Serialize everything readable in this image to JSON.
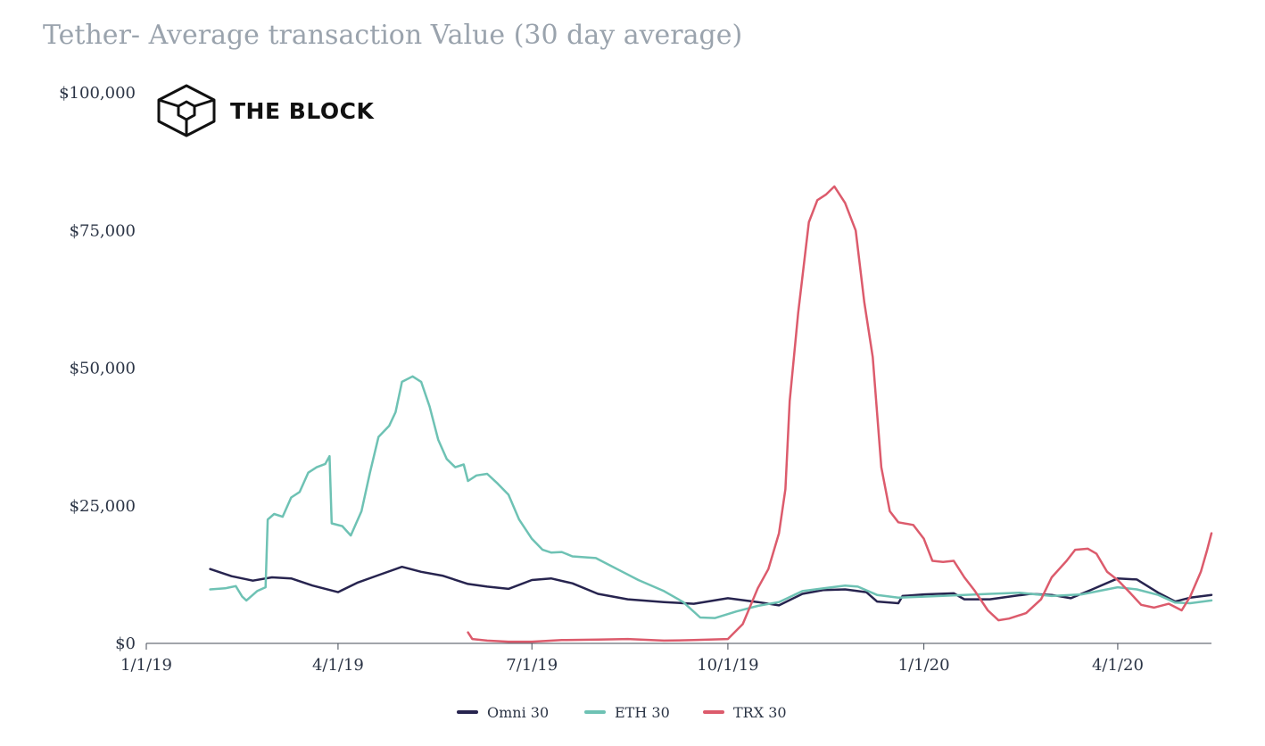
{
  "chart_data": {
    "type": "line",
    "title": "Tether- Average transaction Value (30 day average)",
    "watermark": "THE BLOCK",
    "xlabel": "",
    "ylabel": "",
    "x_range": [
      "2019-01-01",
      "2020-05-15"
    ],
    "x_ticks": [
      "1/1/19",
      "4/1/19",
      "7/1/19",
      "10/1/19",
      "1/1/20",
      "4/1/20"
    ],
    "y_range": [
      0,
      100000
    ],
    "y_ticks": [
      "$0",
      "$25,000",
      "$50,000",
      "$75,000",
      "$100,000"
    ],
    "grid": false,
    "legend_position": "bottom-center",
    "series": [
      {
        "name": "Omni 30",
        "color": "#27244f",
        "points": [
          [
            "2019-01-31",
            13500
          ],
          [
            "2019-02-10",
            12200
          ],
          [
            "2019-02-20",
            11400
          ],
          [
            "2019-03-01",
            12000
          ],
          [
            "2019-03-10",
            11800
          ],
          [
            "2019-03-20",
            10500
          ],
          [
            "2019-04-01",
            9300
          ],
          [
            "2019-04-10",
            11000
          ],
          [
            "2019-04-20",
            12400
          ],
          [
            "2019-05-01",
            13900
          ],
          [
            "2019-05-10",
            13000
          ],
          [
            "2019-05-20",
            12300
          ],
          [
            "2019-06-01",
            10800
          ],
          [
            "2019-06-10",
            10300
          ],
          [
            "2019-06-20",
            9900
          ],
          [
            "2019-07-01",
            11500
          ],
          [
            "2019-07-10",
            11800
          ],
          [
            "2019-07-20",
            10900
          ],
          [
            "2019-08-01",
            9000
          ],
          [
            "2019-08-15",
            8000
          ],
          [
            "2019-09-01",
            7500
          ],
          [
            "2019-09-15",
            7200
          ],
          [
            "2019-10-01",
            8200
          ],
          [
            "2019-10-15",
            7500
          ],
          [
            "2019-10-25",
            6900
          ],
          [
            "2019-11-05",
            9000
          ],
          [
            "2019-11-15",
            9700
          ],
          [
            "2019-11-25",
            9800
          ],
          [
            "2019-12-05",
            9300
          ],
          [
            "2019-12-10",
            7600
          ],
          [
            "2019-12-20",
            7300
          ],
          [
            "2019-12-22",
            8600
          ],
          [
            "2020-01-01",
            8900
          ],
          [
            "2020-01-15",
            9100
          ],
          [
            "2020-01-20",
            8000
          ],
          [
            "2020-02-01",
            8000
          ],
          [
            "2020-02-10",
            8500
          ],
          [
            "2020-02-20",
            9000
          ],
          [
            "2020-03-01",
            8800
          ],
          [
            "2020-03-10",
            8200
          ],
          [
            "2020-03-20",
            9800
          ],
          [
            "2020-04-01",
            11800
          ],
          [
            "2020-04-10",
            11600
          ],
          [
            "2020-04-20",
            9200
          ],
          [
            "2020-04-28",
            7600
          ],
          [
            "2020-05-05",
            8300
          ],
          [
            "2020-05-15",
            8800
          ]
        ]
      },
      {
        "name": "ETH 30",
        "color": "#6ec2b4",
        "points": [
          [
            "2019-01-31",
            9800
          ],
          [
            "2019-02-07",
            10000
          ],
          [
            "2019-02-12",
            10400
          ],
          [
            "2019-02-15",
            8500
          ],
          [
            "2019-02-17",
            7800
          ],
          [
            "2019-02-22",
            9500
          ],
          [
            "2019-02-26",
            10200
          ],
          [
            "2019-02-27",
            22500
          ],
          [
            "2019-03-02",
            23500
          ],
          [
            "2019-03-06",
            23000
          ],
          [
            "2019-03-10",
            26500
          ],
          [
            "2019-03-14",
            27500
          ],
          [
            "2019-03-18",
            31000
          ],
          [
            "2019-03-22",
            32000
          ],
          [
            "2019-03-26",
            32600
          ],
          [
            "2019-03-28",
            34000
          ],
          [
            "2019-03-29",
            21800
          ],
          [
            "2019-04-03",
            21300
          ],
          [
            "2019-04-07",
            19600
          ],
          [
            "2019-04-12",
            24000
          ],
          [
            "2019-04-16",
            31000
          ],
          [
            "2019-04-20",
            37500
          ],
          [
            "2019-04-25",
            39500
          ],
          [
            "2019-04-28",
            42000
          ],
          [
            "2019-05-01",
            47500
          ],
          [
            "2019-05-06",
            48500
          ],
          [
            "2019-05-10",
            47500
          ],
          [
            "2019-05-14",
            43000
          ],
          [
            "2019-05-18",
            37000
          ],
          [
            "2019-05-22",
            33500
          ],
          [
            "2019-05-26",
            32000
          ],
          [
            "2019-05-30",
            32500
          ],
          [
            "2019-06-01",
            29500
          ],
          [
            "2019-06-05",
            30500
          ],
          [
            "2019-06-10",
            30800
          ],
          [
            "2019-06-15",
            29000
          ],
          [
            "2019-06-20",
            27000
          ],
          [
            "2019-06-25",
            22500
          ],
          [
            "2019-07-01",
            19000
          ],
          [
            "2019-07-06",
            17000
          ],
          [
            "2019-07-10",
            16500
          ],
          [
            "2019-07-15",
            16600
          ],
          [
            "2019-07-20",
            15800
          ],
          [
            "2019-07-31",
            15500
          ],
          [
            "2019-08-10",
            13500
          ],
          [
            "2019-08-20",
            11500
          ],
          [
            "2019-09-01",
            9500
          ],
          [
            "2019-09-10",
            7500
          ],
          [
            "2019-09-18",
            4700
          ],
          [
            "2019-09-25",
            4600
          ],
          [
            "2019-10-05",
            5800
          ],
          [
            "2019-10-15",
            6800
          ],
          [
            "2019-10-25",
            7500
          ],
          [
            "2019-11-05",
            9500
          ],
          [
            "2019-11-15",
            10000
          ],
          [
            "2019-11-25",
            10500
          ],
          [
            "2019-12-01",
            10300
          ],
          [
            "2019-12-10",
            8800
          ],
          [
            "2019-12-20",
            8300
          ],
          [
            "2020-01-01",
            8500
          ],
          [
            "2020-01-15",
            8700
          ],
          [
            "2020-02-01",
            9000
          ],
          [
            "2020-02-15",
            9200
          ],
          [
            "2020-03-01",
            8600
          ],
          [
            "2020-03-15",
            8900
          ],
          [
            "2020-04-01",
            10200
          ],
          [
            "2020-04-10",
            9800
          ],
          [
            "2020-04-20",
            8800
          ],
          [
            "2020-04-28",
            7400
          ],
          [
            "2020-05-05",
            7300
          ],
          [
            "2020-05-15",
            7800
          ]
        ]
      },
      {
        "name": "TRX 30",
        "color": "#dc5b6c",
        "points": [
          [
            "2019-06-01",
            2000
          ],
          [
            "2019-06-03",
            800
          ],
          [
            "2019-06-10",
            500
          ],
          [
            "2019-06-20",
            300
          ],
          [
            "2019-07-01",
            300
          ],
          [
            "2019-07-15",
            600
          ],
          [
            "2019-08-01",
            700
          ],
          [
            "2019-08-15",
            800
          ],
          [
            "2019-09-01",
            500
          ],
          [
            "2019-09-15",
            600
          ],
          [
            "2019-10-01",
            800
          ],
          [
            "2019-10-08",
            3500
          ],
          [
            "2019-10-15",
            10000
          ],
          [
            "2019-10-20",
            13500
          ],
          [
            "2019-10-25",
            20000
          ],
          [
            "2019-10-28",
            28000
          ],
          [
            "2019-10-30",
            44000
          ],
          [
            "2019-11-03",
            60000
          ],
          [
            "2019-11-08",
            76500
          ],
          [
            "2019-11-12",
            80500
          ],
          [
            "2019-11-16",
            81500
          ],
          [
            "2019-11-20",
            83000
          ],
          [
            "2019-11-25",
            80000
          ],
          [
            "2019-11-30",
            75000
          ],
          [
            "2019-12-04",
            62000
          ],
          [
            "2019-12-08",
            52000
          ],
          [
            "2019-12-12",
            32000
          ],
          [
            "2019-12-16",
            24000
          ],
          [
            "2019-12-20",
            22000
          ],
          [
            "2019-12-27",
            21500
          ],
          [
            "2020-01-01",
            19000
          ],
          [
            "2020-01-05",
            15000
          ],
          [
            "2020-01-10",
            14800
          ],
          [
            "2020-01-15",
            15000
          ],
          [
            "2020-01-20",
            12000
          ],
          [
            "2020-01-25",
            9500
          ],
          [
            "2020-01-31",
            6000
          ],
          [
            "2020-02-05",
            4200
          ],
          [
            "2020-02-10",
            4500
          ],
          [
            "2020-02-18",
            5500
          ],
          [
            "2020-02-25",
            8000
          ],
          [
            "2020-03-01",
            12000
          ],
          [
            "2020-03-08",
            15000
          ],
          [
            "2020-03-12",
            17000
          ],
          [
            "2020-03-18",
            17200
          ],
          [
            "2020-03-22",
            16300
          ],
          [
            "2020-03-27",
            13000
          ],
          [
            "2020-04-01",
            11500
          ],
          [
            "2020-04-06",
            9500
          ],
          [
            "2020-04-12",
            7000
          ],
          [
            "2020-04-18",
            6500
          ],
          [
            "2020-04-25",
            7200
          ],
          [
            "2020-05-01",
            6000
          ],
          [
            "2020-05-05",
            8500
          ],
          [
            "2020-05-10",
            13000
          ],
          [
            "2020-05-13",
            17000
          ],
          [
            "2020-05-15",
            20000
          ]
        ]
      }
    ]
  }
}
